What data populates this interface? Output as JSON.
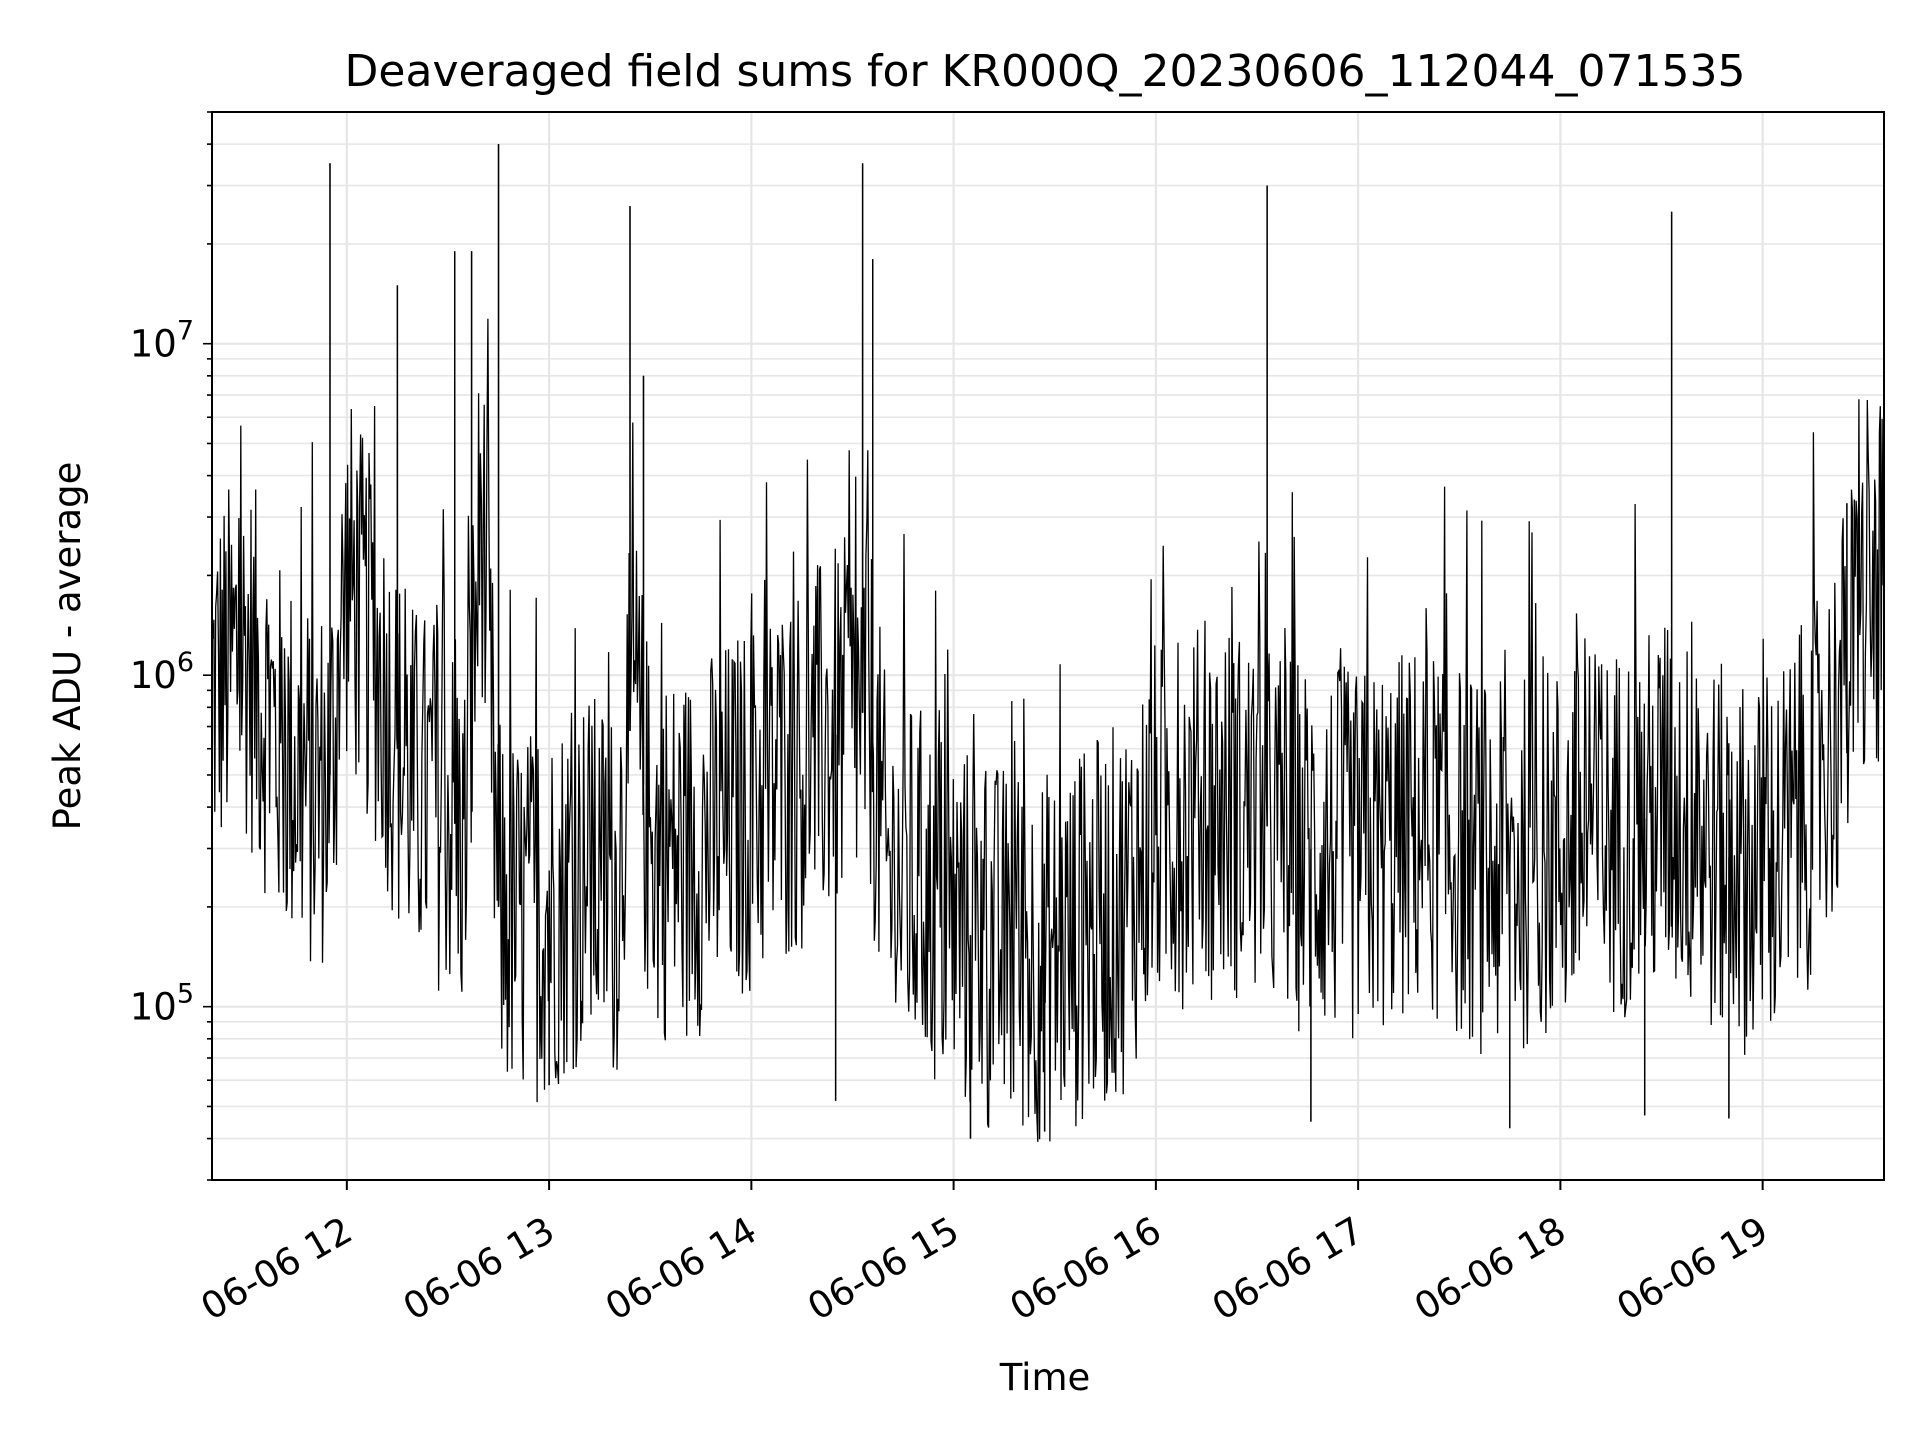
{
  "chart_data": {
    "type": "line",
    "title": "Deaveraged field sums for KR000Q_20230606_112044_071535",
    "xlabel": "Time",
    "ylabel": "Peak ADU - average",
    "x_ticks": [
      "06-06 12",
      "06-06 13",
      "06-06 14",
      "06-06 15",
      "06-06 16",
      "06-06 17",
      "06-06 18",
      "06-06 19"
    ],
    "x_tick_hours": [
      12,
      13,
      14,
      15,
      16,
      17,
      18,
      19
    ],
    "xlim": [
      "2023-06-06 11:20",
      "2023-06-06 19:36"
    ],
    "y_scale": "log",
    "ylim": [
      30000,
      50000000
    ],
    "y_ticks": [
      {
        "value": 100000,
        "base": "10",
        "exp": "5"
      },
      {
        "value": 1000000,
        "base": "10",
        "exp": "6"
      },
      {
        "value": 10000000,
        "base": "10",
        "exp": "7"
      }
    ],
    "grid": true,
    "legend": "none",
    "line_color": "#000000",
    "series": [
      {
        "x": [
          "2023-06-06 11:20",
          "2023-06-06 11:30",
          "2023-06-06 11:40",
          "2023-06-06 11:50",
          "2023-06-06 11:55",
          "2023-06-06 12:00",
          "2023-06-06 12:10",
          "2023-06-06 12:15",
          "2023-06-06 12:20",
          "2023-06-06 12:30",
          "2023-06-06 12:35",
          "2023-06-06 12:40",
          "2023-06-06 12:45",
          "2023-06-06 12:50",
          "2023-06-06 13:00",
          "2023-06-06 13:10",
          "2023-06-06 13:20",
          "2023-06-06 13:25",
          "2023-06-06 13:30",
          "2023-06-06 13:40",
          "2023-06-06 14:00",
          "2023-06-06 14:20",
          "2023-06-06 14:35",
          "2023-06-06 14:40",
          "2023-06-06 14:50",
          "2023-06-06 15:00",
          "2023-06-06 15:10",
          "2023-06-06 15:30",
          "2023-06-06 15:50",
          "2023-06-06 16:00",
          "2023-06-06 16:20",
          "2023-06-06 16:33",
          "2023-06-06 16:45",
          "2023-06-06 17:00",
          "2023-06-06 17:20",
          "2023-06-06 17:40",
          "2023-06-06 18:00",
          "2023-06-06 18:20",
          "2023-06-06 18:33",
          "2023-06-06 18:45",
          "2023-06-06 19:00",
          "2023-06-06 19:10",
          "2023-06-06 19:20",
          "2023-06-06 19:30",
          "2023-06-06 19:36"
        ],
        "y": [
          900000,
          1200000,
          600000,
          450000,
          500000,
          2000000,
          1000000,
          600000,
          450000,
          400000,
          300000,
          3500000,
          200000,
          180000,
          200000,
          250000,
          220000,
          900000,
          300000,
          280000,
          400000,
          600000,
          800000,
          250000,
          220000,
          180000,
          150000,
          140000,
          200000,
          350000,
          400000,
          350000,
          300000,
          280000,
          350000,
          250000,
          300000,
          350000,
          400000,
          300000,
          250000,
          350000,
          600000,
          1500000,
          1800000
        ],
        "spikes": [
          {
            "x": "2023-06-06 11:55",
            "y": 35000000
          },
          {
            "x": "2023-06-06 12:15",
            "y": 15000000
          },
          {
            "x": "2023-06-06 12:32",
            "y": 19000000
          },
          {
            "x": "2023-06-06 12:37",
            "y": 19000000
          },
          {
            "x": "2023-06-06 12:45",
            "y": 40000000
          },
          {
            "x": "2023-06-06 13:24",
            "y": 26000000
          },
          {
            "x": "2023-06-06 13:28",
            "y": 8000000
          },
          {
            "x": "2023-06-06 14:33",
            "y": 35000000
          },
          {
            "x": "2023-06-06 14:36",
            "y": 18000000
          },
          {
            "x": "2023-06-06 16:33",
            "y": 30000000
          },
          {
            "x": "2023-06-06 18:33",
            "y": 25000000
          },
          {
            "x": "2023-06-06 19:25",
            "y": 3300000
          }
        ],
        "dips": [
          {
            "x": "2023-06-06 13:00",
            "y": 58000
          },
          {
            "x": "2023-06-06 14:25",
            "y": 52000
          },
          {
            "x": "2023-06-06 15:05",
            "y": 40000
          },
          {
            "x": "2023-06-06 15:27",
            "y": 42000
          },
          {
            "x": "2023-06-06 16:46",
            "y": 45000
          },
          {
            "x": "2023-06-06 17:45",
            "y": 43000
          },
          {
            "x": "2023-06-06 18:25",
            "y": 47000
          },
          {
            "x": "2023-06-06 18:50",
            "y": 46000
          }
        ]
      }
    ]
  }
}
